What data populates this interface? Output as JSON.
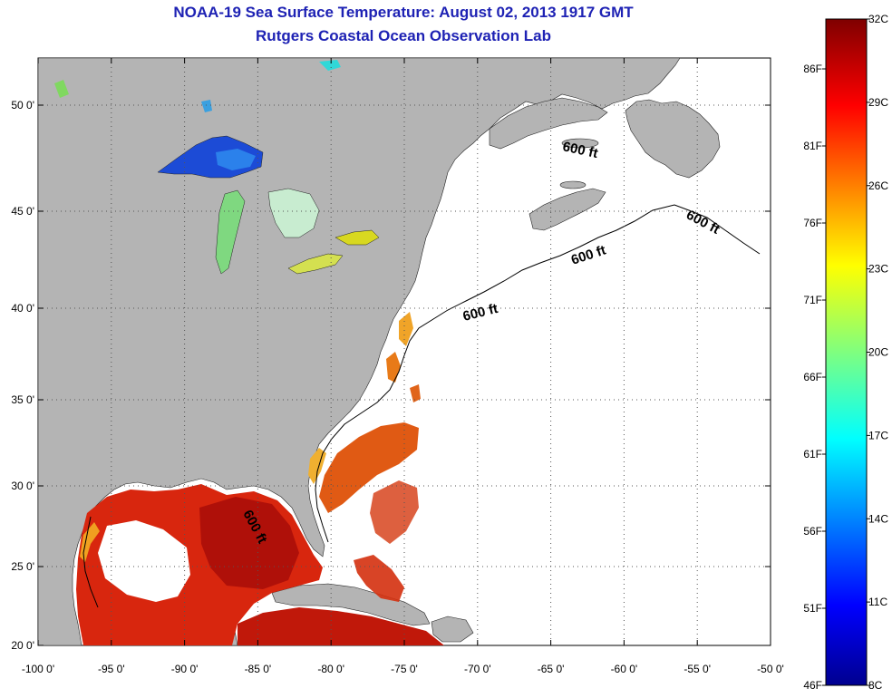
{
  "title": {
    "line1": "NOAA-19 Sea Surface Temperature:  August 02, 2013 1917 GMT",
    "line2": "Rutgers Coastal Ocean Observation Lab"
  },
  "axes": {
    "x_ticks": [
      "-100 0'",
      "-95 0'",
      "-90 0'",
      "-85 0'",
      "-80 0'",
      "-75 0'",
      "-70 0'",
      "-65 0'",
      "-60 0'",
      "-55 0'",
      "-50 0'"
    ],
    "y_ticks": [
      "50 0'",
      "45 0'",
      "40 0'",
      "35 0'",
      "30 0'",
      "25 0'",
      "20 0'"
    ]
  },
  "map": {
    "land_color": "#b4b4b4",
    "ocean_no_data_color": "#ffffff",
    "depth_contour_labels": [
      "600 ft",
      "600 ft",
      "600 ft",
      "600 ft",
      "600 ft"
    ]
  },
  "colorbar": {
    "celsius_labels": [
      "32C",
      "29C",
      "26C",
      "23C",
      "20C",
      "17C",
      "14C",
      "11C",
      "8C"
    ],
    "fahrenheit_labels": [
      "86F",
      "81F",
      "76F",
      "71F",
      "66F",
      "61F",
      "56F",
      "51F",
      "46F"
    ],
    "colormap": "jet"
  }
}
